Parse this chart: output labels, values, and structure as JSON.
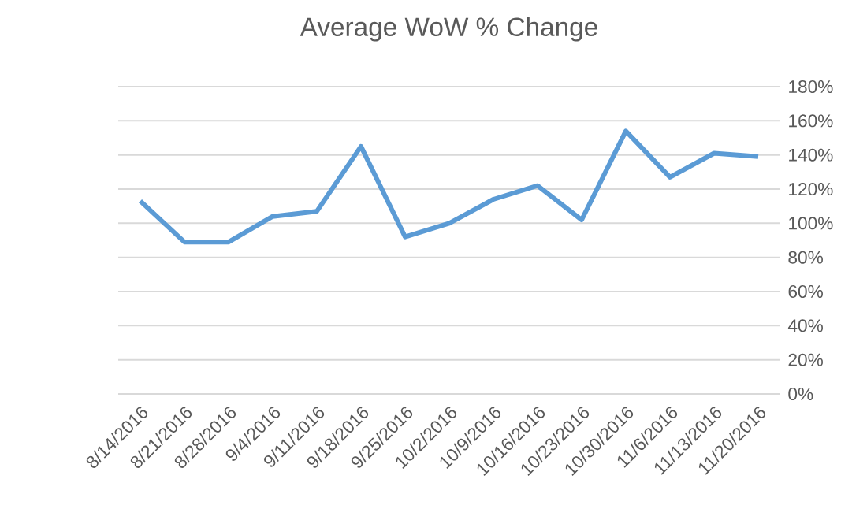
{
  "chart_data": {
    "type": "line",
    "title": "Average WoW % Change",
    "categories": [
      "8/14/2016",
      "8/21/2016",
      "8/28/2016",
      "9/4/2016",
      "9/11/2016",
      "9/18/2016",
      "9/25/2016",
      "10/2/2016",
      "10/9/2016",
      "10/16/2016",
      "10/23/2016",
      "10/30/2016",
      "11/6/2016",
      "11/13/2016",
      "11/20/2016"
    ],
    "series": [
      {
        "color": "#5b9bd5",
        "values": [
          113,
          89,
          89,
          104,
          107,
          145,
          92,
          100,
          114,
          122,
          102,
          154,
          127,
          141,
          139
        ]
      }
    ],
    "ylim": [
      0,
      180
    ],
    "yticks": [
      {
        "value": 0,
        "label": "0%"
      },
      {
        "value": 20,
        "label": "20%"
      },
      {
        "value": 40,
        "label": "40%"
      },
      {
        "value": 60,
        "label": "60%"
      },
      {
        "value": 80,
        "label": "80%"
      },
      {
        "value": 100,
        "label": "100%"
      },
      {
        "value": 120,
        "label": "120%"
      },
      {
        "value": 140,
        "label": "140%"
      },
      {
        "value": 160,
        "label": "160%"
      },
      {
        "value": 180,
        "label": "180%"
      }
    ],
    "grid": "y",
    "marker": "none",
    "line_style": "solid"
  }
}
